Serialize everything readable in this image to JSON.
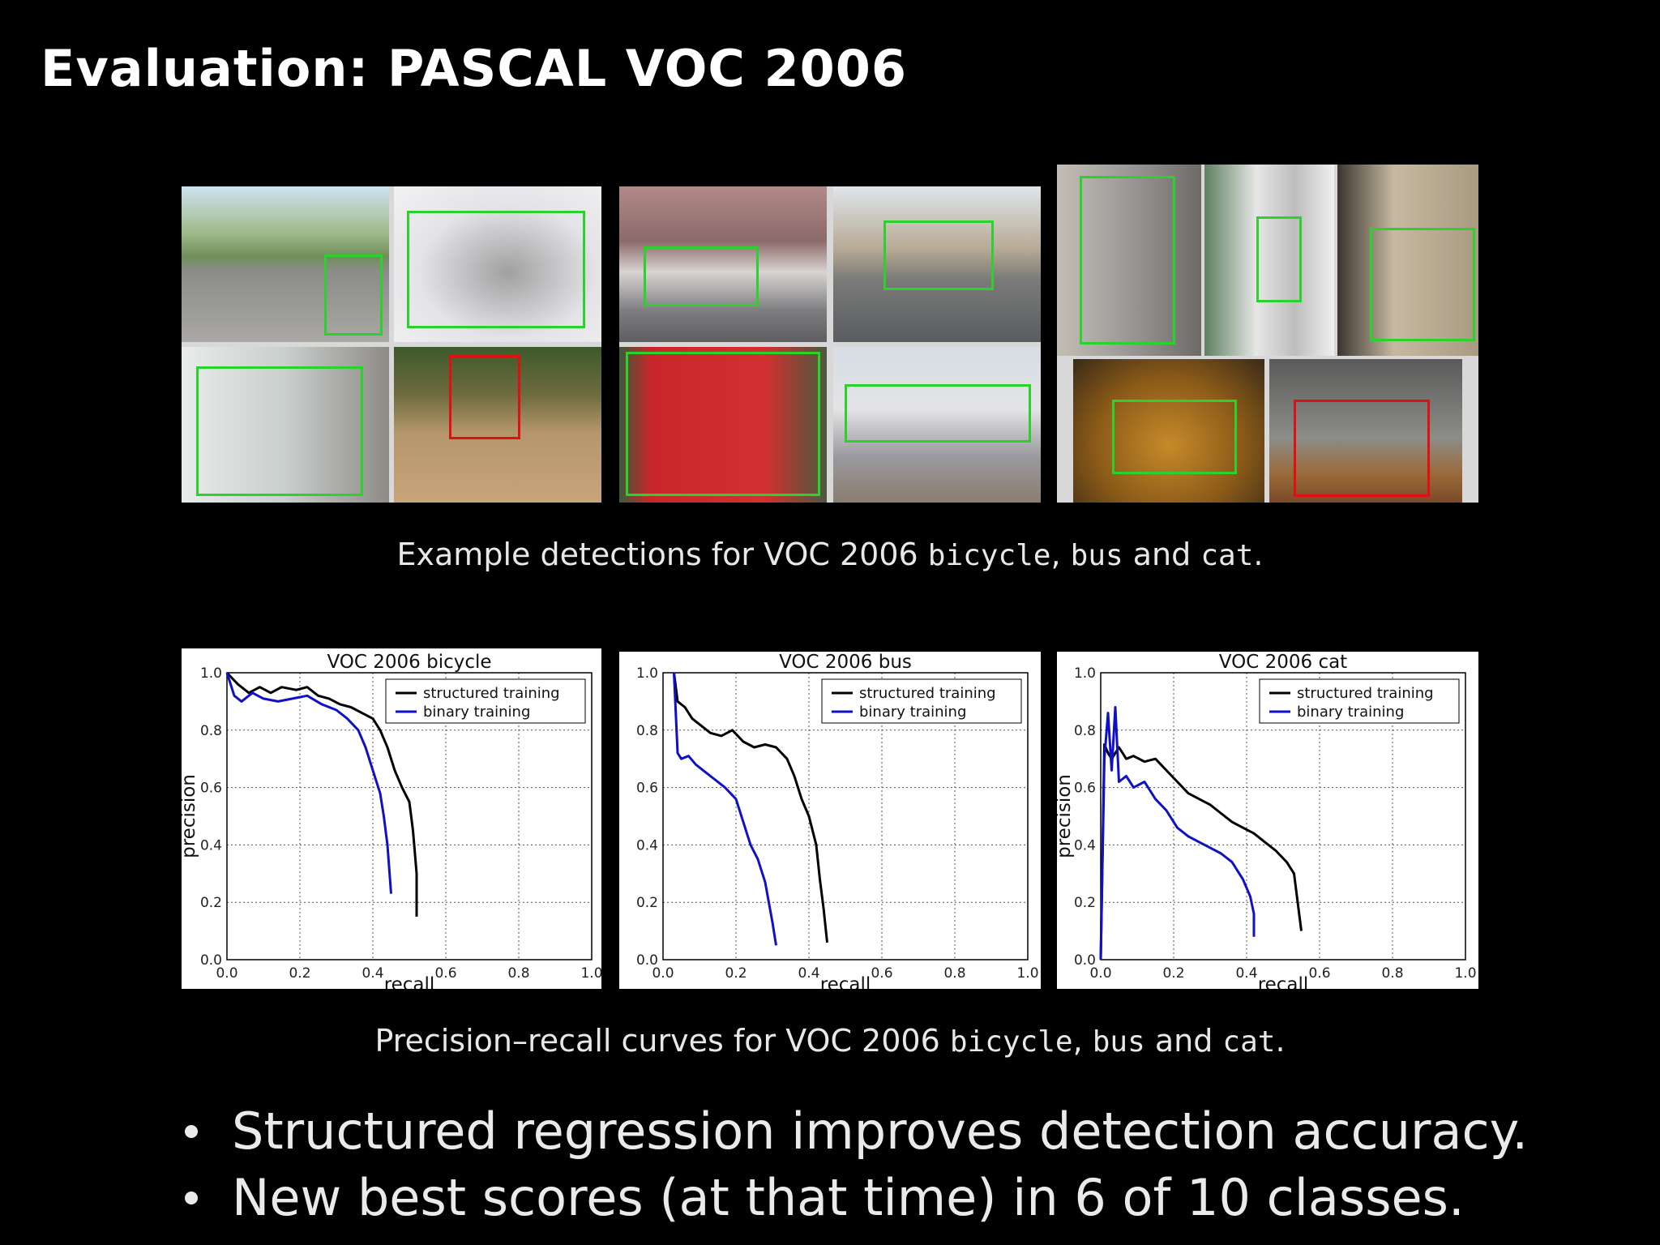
{
  "slide": {
    "title": "Evaluation: PASCAL VOC 2006",
    "caption1": {
      "pre": "Example detections for VOC 2006 ",
      "c1": "bicycle",
      "sep1": ", ",
      "c2": "bus",
      "sep2": " and ",
      "c3": "cat",
      "end": "."
    },
    "caption2": {
      "pre": "Precision–recall curves for VOC 2006 ",
      "c1": "bicycle",
      "sep1": ", ",
      "c2": "bus",
      "sep2": " and ",
      "c3": "cat",
      "end": "."
    },
    "bullets": [
      "Structured regression improves detection accuracy.",
      "New best scores (at that time) in 6 of 10 classes."
    ]
  },
  "colors": {
    "correct_box": "#2dd12d",
    "wrong_box": "#e01010",
    "structured": "#000000",
    "binary": "#1010c8"
  },
  "chart_data": [
    {
      "type": "line",
      "title": "VOC 2006 bicycle",
      "xlabel": "recall",
      "ylabel": "precision",
      "xlim": [
        0,
        1
      ],
      "ylim": [
        0,
        1
      ],
      "xticks": [
        "0.0",
        "0.2",
        "0.4",
        "0.6",
        "0.8",
        "1.0"
      ],
      "yticks": [
        "0.0",
        "0.2",
        "0.4",
        "0.6",
        "0.8",
        "1.0"
      ],
      "grid": true,
      "legend": "top-right",
      "series": [
        {
          "name": "structured training",
          "color": "#000000",
          "x": [
            0.0,
            0.03,
            0.06,
            0.09,
            0.12,
            0.15,
            0.19,
            0.22,
            0.25,
            0.28,
            0.31,
            0.34,
            0.37,
            0.4,
            0.42,
            0.44,
            0.46,
            0.48,
            0.5,
            0.51,
            0.52,
            0.52
          ],
          "y": [
            1.0,
            0.96,
            0.93,
            0.95,
            0.93,
            0.95,
            0.94,
            0.95,
            0.92,
            0.91,
            0.89,
            0.88,
            0.86,
            0.84,
            0.8,
            0.74,
            0.66,
            0.6,
            0.55,
            0.45,
            0.3,
            0.15
          ]
        },
        {
          "name": "binary training",
          "color": "#1010c8",
          "x": [
            0.0,
            0.02,
            0.04,
            0.07,
            0.1,
            0.14,
            0.18,
            0.22,
            0.26,
            0.3,
            0.33,
            0.36,
            0.38,
            0.4,
            0.42,
            0.43,
            0.44,
            0.45
          ],
          "y": [
            1.0,
            0.92,
            0.9,
            0.93,
            0.91,
            0.9,
            0.91,
            0.92,
            0.89,
            0.87,
            0.84,
            0.8,
            0.74,
            0.66,
            0.58,
            0.5,
            0.4,
            0.23
          ]
        }
      ]
    },
    {
      "type": "line",
      "title": "VOC 2006 bus",
      "xlabel": "recall",
      "ylabel": "",
      "xlim": [
        0,
        1
      ],
      "ylim": [
        0,
        1
      ],
      "xticks": [
        "0.0",
        "0.2",
        "0.4",
        "0.6",
        "0.8",
        "1.0"
      ],
      "yticks": [
        "0.0",
        "0.2",
        "0.4",
        "0.6",
        "0.8",
        "1.0"
      ],
      "grid": true,
      "legend": "top-right",
      "series": [
        {
          "name": "structured training",
          "color": "#000000",
          "x": [
            0.03,
            0.04,
            0.06,
            0.08,
            0.1,
            0.13,
            0.16,
            0.19,
            0.22,
            0.25,
            0.28,
            0.31,
            0.34,
            0.36,
            0.38,
            0.4,
            0.42,
            0.43,
            0.44,
            0.45
          ],
          "y": [
            1.0,
            0.9,
            0.88,
            0.84,
            0.82,
            0.79,
            0.78,
            0.8,
            0.76,
            0.74,
            0.75,
            0.74,
            0.7,
            0.64,
            0.56,
            0.5,
            0.4,
            0.28,
            0.18,
            0.06
          ]
        },
        {
          "name": "binary training",
          "color": "#1010c8",
          "x": [
            0.03,
            0.04,
            0.05,
            0.07,
            0.09,
            0.11,
            0.14,
            0.17,
            0.2,
            0.22,
            0.24,
            0.26,
            0.28,
            0.29,
            0.3,
            0.31
          ],
          "y": [
            1.0,
            0.72,
            0.7,
            0.71,
            0.68,
            0.66,
            0.63,
            0.6,
            0.56,
            0.48,
            0.4,
            0.35,
            0.27,
            0.2,
            0.13,
            0.05
          ]
        }
      ]
    },
    {
      "type": "line",
      "title": "VOC 2006 cat",
      "xlabel": "recall",
      "ylabel": "precision",
      "xlim": [
        0,
        1
      ],
      "ylim": [
        0,
        1
      ],
      "xticks": [
        "0.0",
        "0.2",
        "0.4",
        "0.6",
        "0.8",
        "1.0"
      ],
      "yticks": [
        "0.0",
        "0.2",
        "0.4",
        "0.6",
        "0.8",
        "1.0"
      ],
      "grid": true,
      "legend": "top-right",
      "series": [
        {
          "name": "structured training",
          "color": "#000000",
          "x": [
            0.0,
            0.01,
            0.02,
            0.03,
            0.05,
            0.07,
            0.09,
            0.12,
            0.15,
            0.18,
            0.21,
            0.24,
            0.27,
            0.3,
            0.33,
            0.36,
            0.39,
            0.42,
            0.45,
            0.48,
            0.51,
            0.53,
            0.54,
            0.55
          ],
          "y": [
            0.0,
            0.75,
            0.72,
            0.7,
            0.74,
            0.7,
            0.71,
            0.69,
            0.7,
            0.66,
            0.62,
            0.58,
            0.56,
            0.54,
            0.51,
            0.48,
            0.46,
            0.44,
            0.41,
            0.38,
            0.34,
            0.3,
            0.2,
            0.1
          ]
        },
        {
          "name": "binary training",
          "color": "#1010c8",
          "x": [
            0.0,
            0.01,
            0.02,
            0.03,
            0.04,
            0.05,
            0.07,
            0.09,
            0.12,
            0.15,
            0.18,
            0.21,
            0.24,
            0.27,
            0.3,
            0.33,
            0.36,
            0.39,
            0.41,
            0.42,
            0.42
          ],
          "y": [
            0.0,
            0.7,
            0.86,
            0.66,
            0.88,
            0.62,
            0.64,
            0.6,
            0.62,
            0.56,
            0.52,
            0.46,
            0.43,
            0.41,
            0.39,
            0.37,
            0.34,
            0.28,
            0.22,
            0.16,
            0.08
          ]
        }
      ]
    }
  ]
}
